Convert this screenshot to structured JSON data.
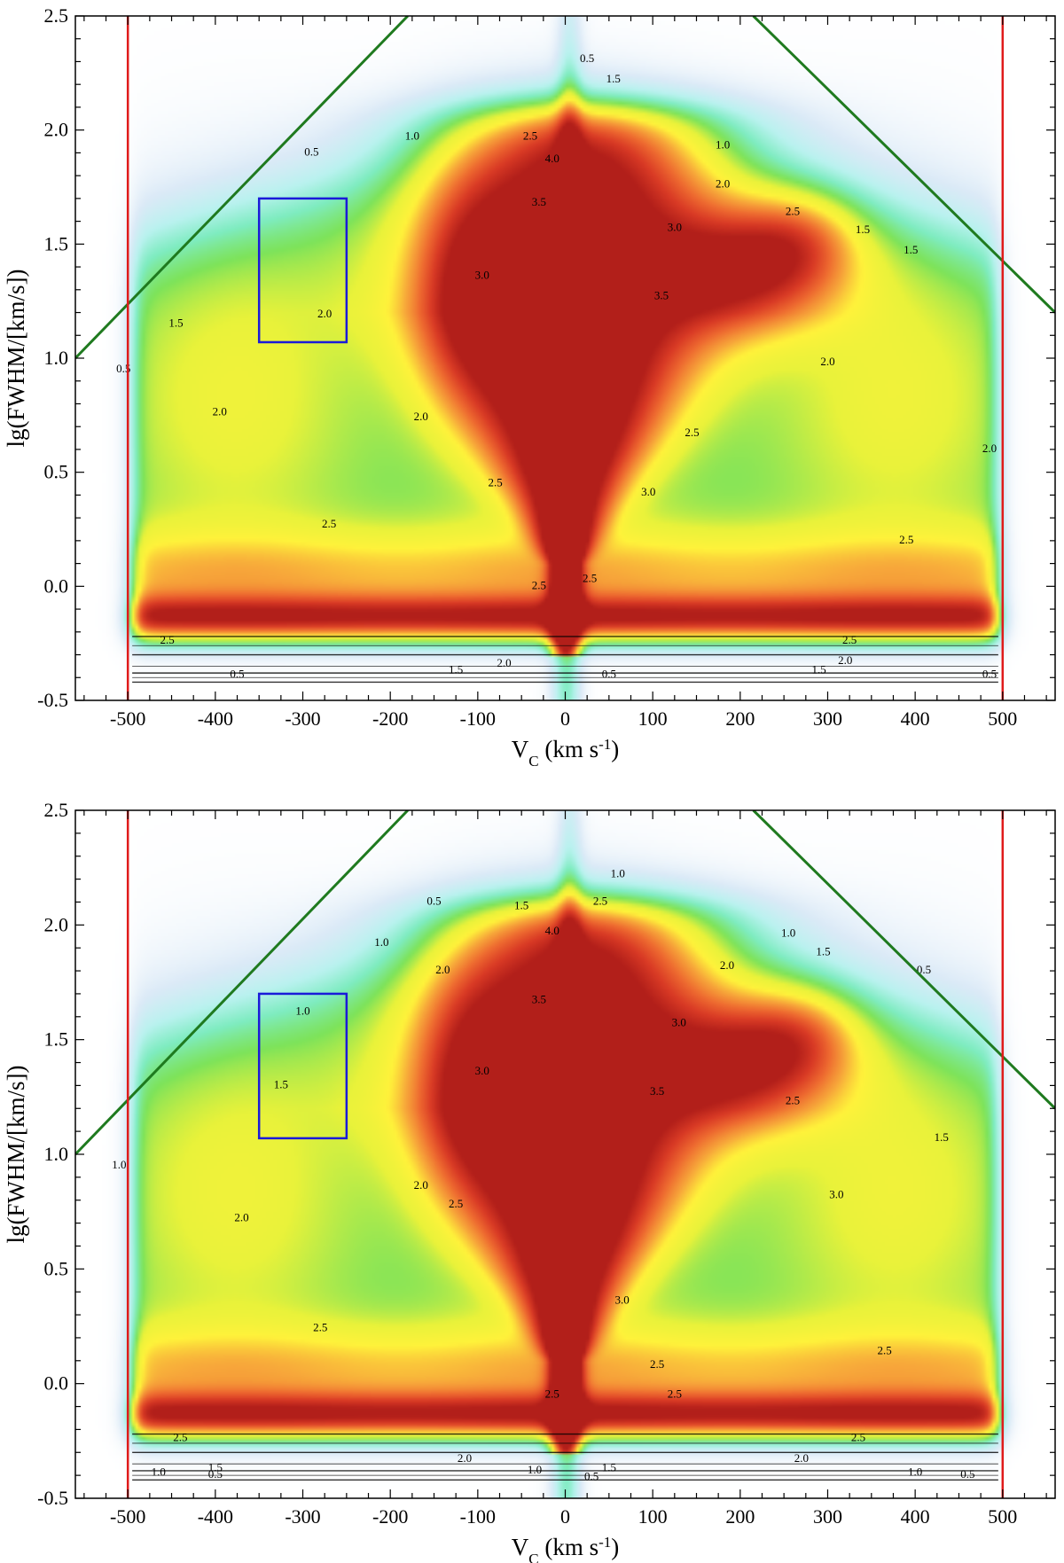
{
  "chart_data": [
    {
      "type": "heatmap",
      "title": "",
      "xlabel": "V",
      "xlabel_sub": "C",
      "xlabel_unit_open": " (km s",
      "xlabel_unit_sup": "-1",
      "xlabel_unit_close": ")",
      "ylabel": "lg(FWHM/[km/s])",
      "xlim": [
        -560,
        560
      ],
      "ylim": [
        -0.5,
        2.5
      ],
      "xticks": [
        -500,
        -400,
        -300,
        -200,
        -100,
        0,
        100,
        200,
        300,
        400,
        500
      ],
      "xtick_labels": [
        "-500",
        "-400",
        "-300",
        "-200",
        "-100",
        "0",
        "100",
        "200",
        "300",
        "400",
        "500"
      ],
      "yticks": [
        -0.5,
        0.0,
        0.5,
        1.0,
        1.5,
        2.0,
        2.5
      ],
      "ytick_labels": [
        "-0.5",
        "0.0",
        "0.5",
        "1.0",
        "1.5",
        "2.0",
        "2.5"
      ],
      "colorscale": [
        "#ffffff",
        "#dbeaf7",
        "#b9f2ef",
        "#7eecc0",
        "#7de35a",
        "#e9f23a",
        "#fff23a",
        "#f7a63a",
        "#ee6a30",
        "#d93a25",
        "#b21f1a"
      ],
      "vertical_lines": {
        "x": [
          -500,
          500
        ],
        "color": "#e01b1b"
      },
      "diagonal_lines": {
        "color": "#1f7a1f",
        "segments": [
          [
            [
              -560,
              1.0
            ],
            [
              -180,
              2.5
            ]
          ],
          [
            [
              215,
              2.5
            ],
            [
              560,
              1.2
            ]
          ]
        ]
      },
      "highlight_box": {
        "x": [
          -350,
          -250
        ],
        "y": [
          1.07,
          1.7
        ],
        "color": "#1a1ad9"
      },
      "contour_labels": [
        {
          "text": "0.5",
          "x": 25,
          "y": 2.31
        },
        {
          "text": "1.5",
          "x": 55,
          "y": 2.22
        },
        {
          "text": "1.0",
          "x": -175,
          "y": 1.97
        },
        {
          "text": "0.5",
          "x": -290,
          "y": 1.9
        },
        {
          "text": "2.5",
          "x": -40,
          "y": 1.97
        },
        {
          "text": "4.0",
          "x": -15,
          "y": 1.87
        },
        {
          "text": "3.5",
          "x": -30,
          "y": 1.68
        },
        {
          "text": "1.0",
          "x": 180,
          "y": 1.93
        },
        {
          "text": "2.0",
          "x": 180,
          "y": 1.76
        },
        {
          "text": "2.5",
          "x": 260,
          "y": 1.64
        },
        {
          "text": "3.0",
          "x": 125,
          "y": 1.57
        },
        {
          "text": "3.5",
          "x": 110,
          "y": 1.27
        },
        {
          "text": "3.0",
          "x": -95,
          "y": 1.36
        },
        {
          "text": "2.0",
          "x": -275,
          "y": 1.19
        },
        {
          "text": "1.5",
          "x": -445,
          "y": 1.15
        },
        {
          "text": "0.5",
          "x": -505,
          "y": 0.95
        },
        {
          "text": "2.0",
          "x": -395,
          "y": 0.76
        },
        {
          "text": "2.0",
          "x": -165,
          "y": 0.74
        },
        {
          "text": "1.5",
          "x": 395,
          "y": 1.47
        },
        {
          "text": "1.5",
          "x": 340,
          "y": 1.56
        },
        {
          "text": "2.0",
          "x": 300,
          "y": 0.98
        },
        {
          "text": "2.5",
          "x": 145,
          "y": 0.67
        },
        {
          "text": "2.0",
          "x": 485,
          "y": 0.6
        },
        {
          "text": "3.0",
          "x": 95,
          "y": 0.41
        },
        {
          "text": "2.5",
          "x": -80,
          "y": 0.45
        },
        {
          "text": "2.5",
          "x": 390,
          "y": 0.2
        },
        {
          "text": "2.5",
          "x": -270,
          "y": 0.27
        },
        {
          "text": "2.5",
          "x": 28,
          "y": 0.03
        },
        {
          "text": "2.5",
          "x": -30,
          "y": 0.0
        },
        {
          "text": "2.5",
          "x": -455,
          "y": -0.24
        },
        {
          "text": "2.5",
          "x": 325,
          "y": -0.24
        },
        {
          "text": "2.0",
          "x": 320,
          "y": -0.33
        },
        {
          "text": "1.5",
          "x": -125,
          "y": -0.37
        },
        {
          "text": "2.0",
          "x": -70,
          "y": -0.34
        },
        {
          "text": "1.5",
          "x": 290,
          "y": -0.37
        },
        {
          "text": "0.5",
          "x": -375,
          "y": -0.39
        },
        {
          "text": "0.5",
          "x": 485,
          "y": -0.39
        },
        {
          "text": "0.5",
          "x": 50,
          "y": -0.39
        }
      ]
    },
    {
      "type": "heatmap",
      "title": "",
      "xlabel": "V",
      "xlabel_sub": "C",
      "xlabel_unit_open": " (km s",
      "xlabel_unit_sup": "-1",
      "xlabel_unit_close": ")",
      "ylabel": "lg(FWHM/[km/s])",
      "xlim": [
        -560,
        560
      ],
      "ylim": [
        -0.5,
        2.5
      ],
      "xticks": [
        -500,
        -400,
        -300,
        -200,
        -100,
        0,
        100,
        200,
        300,
        400,
        500
      ],
      "xtick_labels": [
        "-500",
        "-400",
        "-300",
        "-200",
        "-100",
        "0",
        "100",
        "200",
        "300",
        "400",
        "500"
      ],
      "yticks": [
        -0.5,
        0.0,
        0.5,
        1.0,
        1.5,
        2.0,
        2.5
      ],
      "ytick_labels": [
        "-0.5",
        "0.0",
        "0.5",
        "1.0",
        "1.5",
        "2.0",
        "2.5"
      ],
      "colorscale": [
        "#ffffff",
        "#dbeaf7",
        "#b9f2ef",
        "#7eecc0",
        "#7de35a",
        "#e9f23a",
        "#fff23a",
        "#f7a63a",
        "#ee6a30",
        "#d93a25",
        "#b21f1a"
      ],
      "vertical_lines": {
        "x": [
          -500,
          500
        ],
        "color": "#e01b1b"
      },
      "diagonal_lines": {
        "color": "#1f7a1f",
        "segments": [
          [
            [
              -560,
              1.0
            ],
            [
              -180,
              2.5
            ]
          ],
          [
            [
              215,
              2.5
            ],
            [
              560,
              1.2
            ]
          ]
        ]
      },
      "highlight_box": {
        "x": [
          -350,
          -250
        ],
        "y": [
          1.07,
          1.7
        ],
        "color": "#1a1ad9"
      },
      "contour_labels": [
        {
          "text": "1.0",
          "x": 60,
          "y": 2.22
        },
        {
          "text": "2.5",
          "x": 40,
          "y": 2.1
        },
        {
          "text": "0.5",
          "x": -150,
          "y": 2.1
        },
        {
          "text": "1.5",
          "x": -50,
          "y": 2.08
        },
        {
          "text": "1.0",
          "x": -210,
          "y": 1.92
        },
        {
          "text": "2.0",
          "x": -140,
          "y": 1.8
        },
        {
          "text": "4.0",
          "x": -15,
          "y": 1.97
        },
        {
          "text": "3.5",
          "x": -30,
          "y": 1.67
        },
        {
          "text": "1.0",
          "x": -300,
          "y": 1.62
        },
        {
          "text": "1.5",
          "x": -325,
          "y": 1.3
        },
        {
          "text": "3.0",
          "x": -95,
          "y": 1.36
        },
        {
          "text": "3.0",
          "x": 130,
          "y": 1.57
        },
        {
          "text": "2.0",
          "x": 185,
          "y": 1.82
        },
        {
          "text": "1.5",
          "x": 295,
          "y": 1.88
        },
        {
          "text": "1.0",
          "x": 255,
          "y": 1.96
        },
        {
          "text": "0.5",
          "x": 410,
          "y": 1.8
        },
        {
          "text": "3.5",
          "x": 105,
          "y": 1.27
        },
        {
          "text": "2.5",
          "x": 260,
          "y": 1.23
        },
        {
          "text": "1.5",
          "x": 430,
          "y": 1.07
        },
        {
          "text": "3.0",
          "x": 310,
          "y": 0.82
        },
        {
          "text": "2.0",
          "x": -165,
          "y": 0.86
        },
        {
          "text": "2.5",
          "x": -125,
          "y": 0.78
        },
        {
          "text": "2.0",
          "x": -370,
          "y": 0.72
        },
        {
          "text": "1.0",
          "x": -510,
          "y": 0.95
        },
        {
          "text": "3.0",
          "x": 65,
          "y": 0.36
        },
        {
          "text": "2.5",
          "x": -280,
          "y": 0.24
        },
        {
          "text": "2.5",
          "x": 105,
          "y": 0.08
        },
        {
          "text": "2.5",
          "x": 365,
          "y": 0.14
        },
        {
          "text": "2.5",
          "x": 125,
          "y": -0.05
        },
        {
          "text": "2.5",
          "x": -15,
          "y": -0.05
        },
        {
          "text": "2.5",
          "x": -440,
          "y": -0.24
        },
        {
          "text": "2.5",
          "x": 335,
          "y": -0.24
        },
        {
          "text": "2.0",
          "x": -115,
          "y": -0.33
        },
        {
          "text": "2.0",
          "x": 270,
          "y": -0.33
        },
        {
          "text": "1.5",
          "x": -400,
          "y": -0.37
        },
        {
          "text": "1.5",
          "x": 50,
          "y": -0.37
        },
        {
          "text": "1.0",
          "x": -35,
          "y": -0.38
        },
        {
          "text": "1.0",
          "x": -465,
          "y": -0.39
        },
        {
          "text": "0.5",
          "x": -400,
          "y": -0.4
        },
        {
          "text": "0.5",
          "x": 30,
          "y": -0.41
        },
        {
          "text": "1.0",
          "x": 400,
          "y": -0.39
        },
        {
          "text": "0.5",
          "x": 460,
          "y": -0.4
        }
      ]
    }
  ]
}
